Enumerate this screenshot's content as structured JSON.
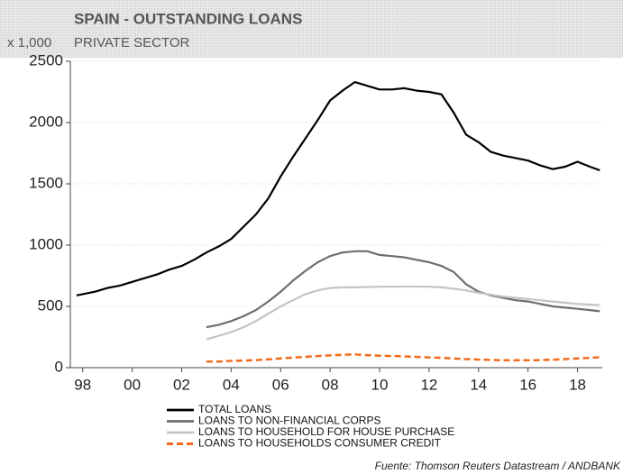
{
  "chart_data": {
    "type": "line",
    "title": "SPAIN - OUTSTANDING LOANS",
    "subtitle": "PRIVATE SECTOR",
    "y_label": "x 1,000",
    "source": "Fuente: Thomson Reuters Datastream / ANDBANK",
    "x": [
      1997.75,
      1998.5,
      1999,
      1999.5,
      2000,
      2000.5,
      2001,
      2001.5,
      2002,
      2002.5,
      2003,
      2003.5,
      2004,
      2004.5,
      2005,
      2005.5,
      2006,
      2006.5,
      2007,
      2007.5,
      2008,
      2008.5,
      2009,
      2009.5,
      2010,
      2010.5,
      2011,
      2011.5,
      2012,
      2012.5,
      2013,
      2013.5,
      2014,
      2014.5,
      2015,
      2015.5,
      2016,
      2016.5,
      2017,
      2017.5,
      2018,
      2018.5,
      2018.9
    ],
    "series": [
      {
        "name": "TOTAL LOANS",
        "color": "#000000",
        "dash": false,
        "width": 2.2,
        "values": [
          590,
          620,
          650,
          670,
          700,
          730,
          760,
          800,
          830,
          880,
          940,
          990,
          1050,
          1150,
          1250,
          1380,
          1560,
          1720,
          1870,
          2020,
          2180,
          2260,
          2330,
          2300,
          2270,
          2270,
          2280,
          2260,
          2250,
          2230,
          2080,
          1900,
          1840,
          1760,
          1730,
          1710,
          1690,
          1650,
          1620,
          1640,
          1680,
          1640,
          1610
        ]
      },
      {
        "name": "LOANS TO NON-FINANCIAL CORPS",
        "color": "#6e6e6e",
        "dash": false,
        "width": 2.2,
        "values": [
          null,
          null,
          null,
          null,
          null,
          null,
          null,
          null,
          null,
          null,
          330,
          350,
          380,
          420,
          470,
          540,
          620,
          710,
          790,
          860,
          910,
          940,
          950,
          950,
          920,
          910,
          900,
          880,
          860,
          830,
          780,
          680,
          620,
          590,
          570,
          550,
          540,
          520,
          500,
          490,
          480,
          470,
          460
        ]
      },
      {
        "name": "LOANS TO HOUSEHOLD FOR HOUSE PURCHASE",
        "color": "#c4c4c4",
        "dash": false,
        "width": 2.2,
        "values": [
          null,
          null,
          null,
          null,
          null,
          null,
          null,
          null,
          null,
          null,
          230,
          260,
          290,
          330,
          380,
          440,
          500,
          550,
          600,
          630,
          650,
          655,
          655,
          658,
          660,
          660,
          662,
          662,
          660,
          655,
          645,
          630,
          610,
          595,
          580,
          570,
          560,
          550,
          540,
          530,
          520,
          515,
          510
        ]
      },
      {
        "name": "LOANS TO HOUSEHOLDS CONSUMER CREDIT",
        "color": "#f26b1d",
        "dash": true,
        "width": 2.5,
        "values": [
          null,
          null,
          null,
          null,
          null,
          null,
          null,
          null,
          null,
          null,
          50,
          50,
          55,
          58,
          62,
          68,
          75,
          82,
          88,
          95,
          100,
          105,
          108,
          102,
          98,
          95,
          92,
          88,
          84,
          80,
          75,
          70,
          66,
          63,
          60,
          60,
          60,
          62,
          65,
          70,
          75,
          80,
          85
        ]
      }
    ],
    "xlim": [
      1997.5,
      2019
    ],
    "ylim": [
      0,
      2500
    ],
    "xticks": [
      {
        "value": 1998,
        "label": "98"
      },
      {
        "value": 2000,
        "label": "00"
      },
      {
        "value": 2002,
        "label": "02"
      },
      {
        "value": 2004,
        "label": "04"
      },
      {
        "value": 2006,
        "label": "06"
      },
      {
        "value": 2008,
        "label": "08"
      },
      {
        "value": 2010,
        "label": "10"
      },
      {
        "value": 2012,
        "label": "12"
      },
      {
        "value": 2014,
        "label": "14"
      },
      {
        "value": 2016,
        "label": "16"
      },
      {
        "value": 2018,
        "label": "18"
      }
    ],
    "yticks": [
      0,
      500,
      1000,
      1500,
      2000,
      2500
    ],
    "grid": true
  }
}
